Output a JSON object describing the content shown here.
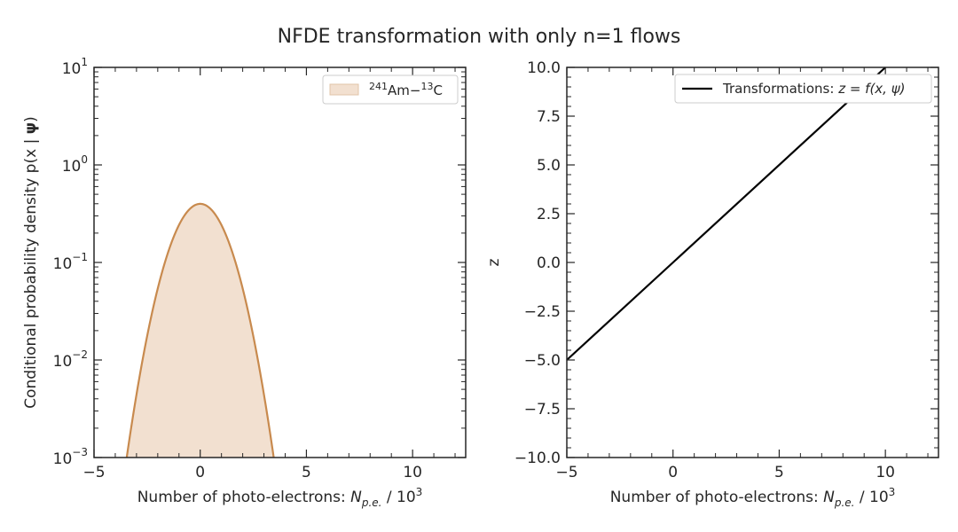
{
  "figure_title": "NFDE transformation with only n=1 flows",
  "colors": {
    "fill": "#f2e0d0",
    "line": "#c88a4e",
    "line2": "#000000",
    "axes": "#262626"
  },
  "chart_data": [
    {
      "type": "area",
      "title": "",
      "xlabel_prefix": "Number of photo-electrons: ",
      "xlabel_var": "N",
      "xlabel_sub": "p.e.",
      "xlabel_unit": " / 10",
      "xlabel_unit_exp": "3",
      "ylabel": "Conditional probability density p(x | ",
      "ylabel_bold": "ψ",
      "ylabel_close": ")",
      "xlim": [
        -5,
        12.5
      ],
      "ylim": [
        0.001,
        10
      ],
      "yscale": "log",
      "xticks": [
        "−5",
        "0",
        "5",
        "10"
      ],
      "xtick_values": [
        -5,
        0,
        5,
        10
      ],
      "yticks": [
        {
          "base": "10",
          "exp": "−3",
          "value": 0.001
        },
        {
          "base": "10",
          "exp": "−2",
          "value": 0.01
        },
        {
          "base": "10",
          "exp": "−1",
          "value": 0.1
        },
        {
          "base": "10",
          "exp": "0",
          "value": 1
        },
        {
          "base": "10",
          "exp": "1",
          "value": 10
        }
      ],
      "legend_position": "top-right",
      "series": [
        {
          "name_sup1": "241",
          "name_mid": "Am−",
          "name_sup2": "13",
          "name_end": "C",
          "distribution": "gaussian",
          "mean": 0,
          "std": 1
        }
      ]
    },
    {
      "type": "line",
      "title": "",
      "xlabel_prefix": "Number of photo-electrons: ",
      "xlabel_var": "N",
      "xlabel_sub": "p.e.",
      "xlabel_unit": " / 10",
      "xlabel_unit_exp": "3",
      "ylabel": "z",
      "xlim": [
        -5,
        12.5
      ],
      "ylim": [
        -10,
        10
      ],
      "xticks": [
        "−5",
        "0",
        "5",
        "10"
      ],
      "xtick_values": [
        -5,
        0,
        5,
        10
      ],
      "yticks": [
        "−10.0",
        "−7.5",
        "−5.0",
        "−2.5",
        "0.0",
        "2.5",
        "5.0",
        "7.5",
        "10.0"
      ],
      "ytick_values": [
        -10,
        -7.5,
        -5,
        -2.5,
        0,
        2.5,
        5,
        7.5,
        10
      ],
      "legend_position": "top-right",
      "series": [
        {
          "name_prefix": "Transformations: ",
          "name_math": "z = f(x, ψ)",
          "x": [
            -5,
            10
          ],
          "y": [
            -5,
            10
          ]
        }
      ]
    }
  ]
}
